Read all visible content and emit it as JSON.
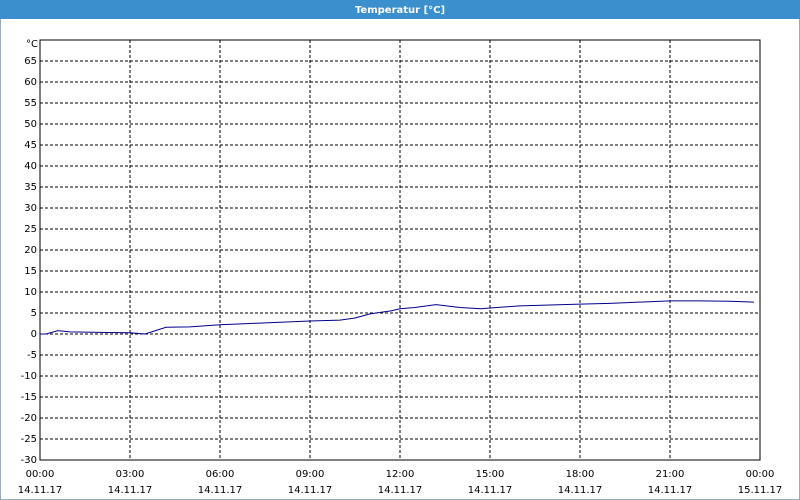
{
  "chart_data": {
    "type": "line",
    "title": "Temperatur [°C]",
    "y_label": "°C",
    "x": [
      0,
      0.2,
      0.6,
      1,
      2,
      3,
      3.5,
      4.2,
      5,
      6,
      7,
      8,
      9,
      10,
      10.5,
      11,
      11.7,
      12,
      12.5,
      13.2,
      14,
      14.7,
      15,
      16,
      17,
      18,
      19,
      20,
      21,
      22,
      23,
      23.8
    ],
    "series": [
      {
        "name": "Temperatur",
        "color": "#00008b",
        "values": [
          0,
          0,
          0.8,
          0.5,
          0.4,
          0.3,
          0,
          1.6,
          1.7,
          2.2,
          2.5,
          2.8,
          3.1,
          3.3,
          3.8,
          4.8,
          5.5,
          6.0,
          6.3,
          7.0,
          6.3,
          6.0,
          6.2,
          6.7,
          6.9,
          7.1,
          7.3,
          7.6,
          7.9,
          7.9,
          7.8,
          7.6
        ]
      }
    ],
    "xlim": [
      0,
      24
    ],
    "xticks": [
      {
        "value": 0,
        "label": "00:00"
      },
      {
        "value": 3,
        "label": "03:00"
      },
      {
        "value": 6,
        "label": "06:00"
      },
      {
        "value": 9,
        "label": "09:00"
      },
      {
        "value": 12,
        "label": "12:00"
      },
      {
        "value": 15,
        "label": "15:00"
      },
      {
        "value": 18,
        "label": "18:00"
      },
      {
        "value": 21,
        "label": "21:00"
      },
      {
        "value": 24,
        "label": "00:00"
      }
    ],
    "xtick_dates": [
      "14.11.17",
      "14.11.17",
      "14.11.17",
      "14.11.17",
      "14.11.17",
      "14.11.17",
      "14.11.17",
      "14.11.17",
      "15.11.17"
    ],
    "ylim": [
      -30,
      70
    ],
    "yticks": [
      -30,
      -25,
      -20,
      -15,
      -10,
      -5,
      0,
      5,
      10,
      15,
      20,
      25,
      30,
      35,
      40,
      45,
      50,
      55,
      60,
      65
    ],
    "grid": true
  }
}
